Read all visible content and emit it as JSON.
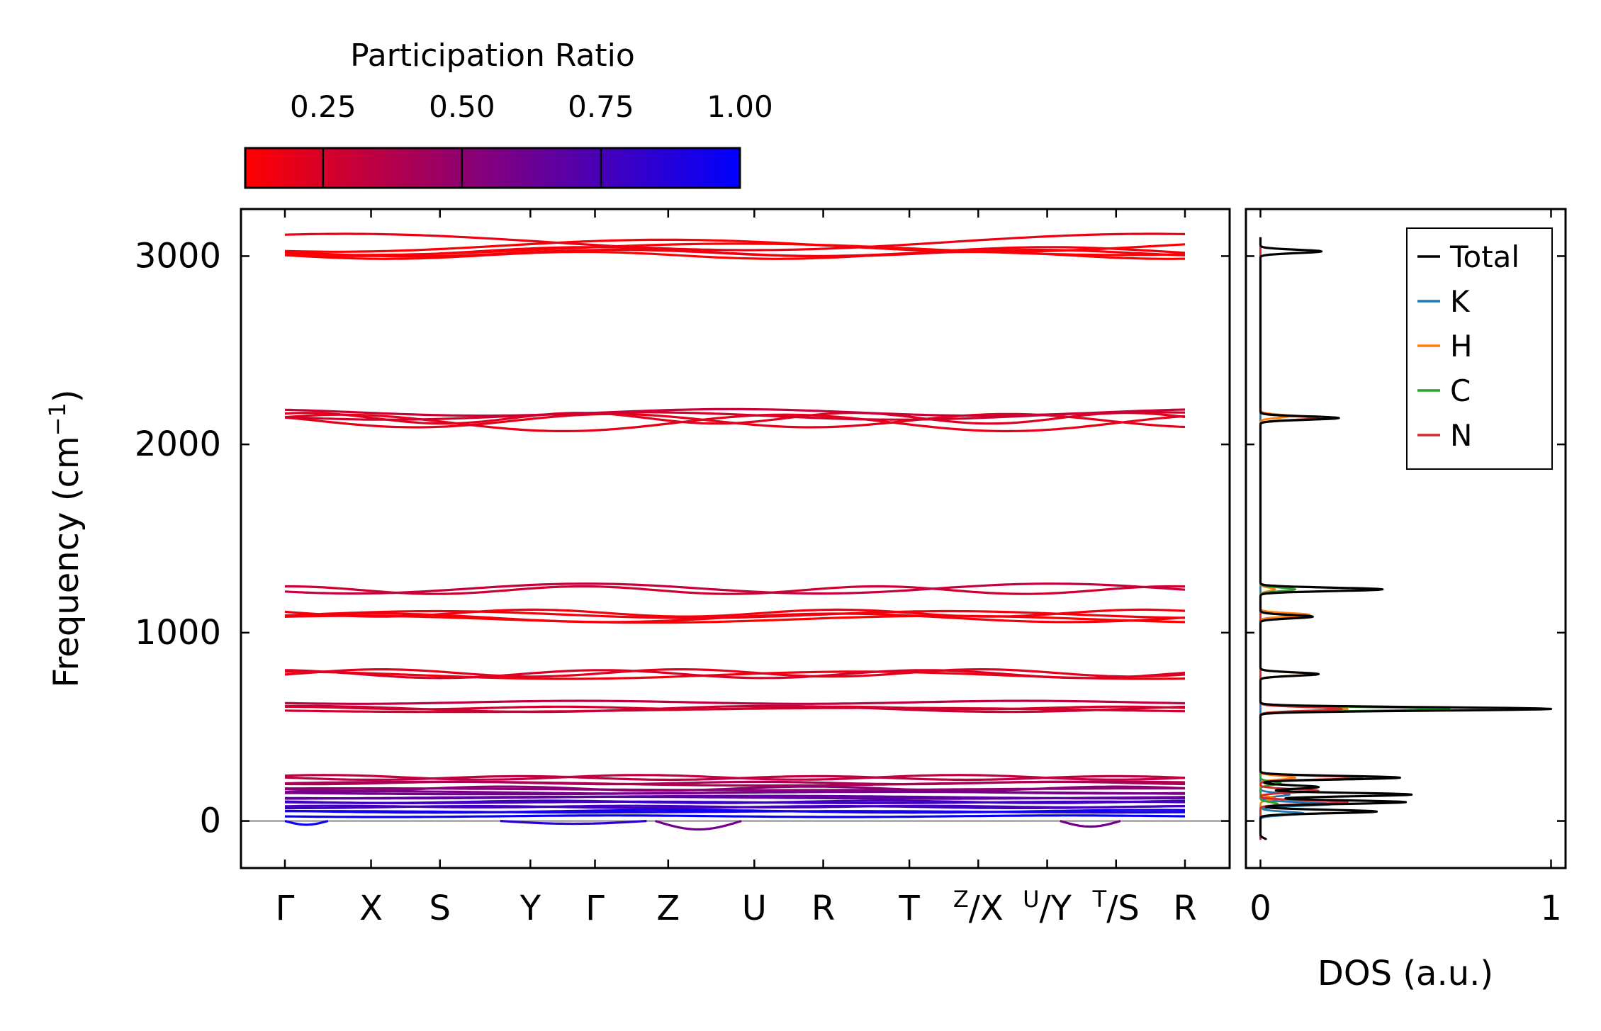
{
  "chart_data": [
    {
      "type": "line",
      "subtype": "phonon-band-structure",
      "ylabel": "Frequency (cm",
      "ylabel_sup": "−1",
      "ylabel_close": ")",
      "ylim": [
        -250,
        3250
      ],
      "yticks": [
        0,
        1000,
        2000,
        3000
      ],
      "ytick_labels": [
        "0",
        "1000",
        "2000",
        "3000"
      ],
      "kpoint_positions": [
        0,
        1,
        1.8,
        2.85,
        3.6,
        4.45,
        5.45,
        6.25,
        7.25,
        8.05,
        8.85,
        9.65,
        10.45
      ],
      "kpoints": [
        {
          "main": "Γ"
        },
        {
          "main": "X"
        },
        {
          "main": "S"
        },
        {
          "main": "Y"
        },
        {
          "main": "Γ"
        },
        {
          "main": "Z"
        },
        {
          "main": "U"
        },
        {
          "main": "R"
        },
        {
          "main": "T"
        },
        {
          "sup": "Z",
          "main": "/X"
        },
        {
          "sup": "U",
          "main": "/Y"
        },
        {
          "sup": "T",
          "main": "/S"
        },
        {
          "main": "R"
        }
      ],
      "colorbar": {
        "title": "Participation Ratio",
        "range": [
          0.11,
          1.0
        ],
        "ticks": [
          0.25,
          0.5,
          0.75,
          1.0
        ],
        "tick_labels": [
          "0.25",
          "0.50",
          "0.75",
          "1.00"
        ],
        "color_low": "#ff0000",
        "color_high": "#0000ff"
      },
      "band_groups": [
        {
          "freq": 3010,
          "pr": 0.12,
          "bands": 2
        },
        {
          "freq": 3030,
          "pr": 0.14,
          "bands": 2
        },
        {
          "freq": 3055,
          "pr": 0.13,
          "bands": 1
        },
        {
          "freq": 3075,
          "pr": 0.14,
          "bands": 1
        },
        {
          "freq": 2120,
          "pr": 0.22,
          "bands": 2
        },
        {
          "freq": 2145,
          "pr": 0.24,
          "bands": 2
        },
        {
          "freq": 2170,
          "pr": 0.27,
          "bands": 1
        },
        {
          "freq": 1230,
          "pr": 0.3,
          "bands": 2
        },
        {
          "freq": 1075,
          "pr": 0.14,
          "bands": 2
        },
        {
          "freq": 1100,
          "pr": 0.16,
          "bands": 2
        },
        {
          "freq": 780,
          "pr": 0.2,
          "bands": 3
        },
        {
          "freq": 595,
          "pr": 0.28,
          "bands": 3
        },
        {
          "freq": 630,
          "pr": 0.3,
          "bands": 1
        },
        {
          "freq": 230,
          "pr": 0.35,
          "bands": 2
        },
        {
          "freq": 200,
          "pr": 0.38,
          "bands": 2
        },
        {
          "freq": 170,
          "pr": 0.55,
          "bands": 2
        },
        {
          "freq": 150,
          "pr": 0.6,
          "bands": 2
        },
        {
          "freq": 125,
          "pr": 0.7,
          "bands": 2
        },
        {
          "freq": 100,
          "pr": 0.75,
          "bands": 2
        },
        {
          "freq": 75,
          "pr": 0.8,
          "bands": 2
        },
        {
          "freq": 50,
          "pr": 0.9,
          "bands": 2
        },
        {
          "freq": 25,
          "pr": 0.95,
          "bands": 1
        }
      ],
      "zero_line": 0
    },
    {
      "type": "line",
      "subtype": "density-of-states",
      "xlabel": "DOS (a.u.)",
      "xlim": [
        -0.05,
        1.05
      ],
      "xticks": [
        0,
        1
      ],
      "xtick_labels": [
        "0",
        "1"
      ],
      "legend": "top-right",
      "series": [
        {
          "name": "Total",
          "color": "#000000",
          "peaks": [
            [
              -100,
              0.02
            ],
            [
              50,
              0.4
            ],
            [
              100,
              0.5
            ],
            [
              140,
              0.52
            ],
            [
              180,
              0.2
            ],
            [
              230,
              0.48
            ],
            [
              595,
              1.0
            ],
            [
              780,
              0.2
            ],
            [
              1085,
              0.18
            ],
            [
              1230,
              0.42
            ],
            [
              2140,
              0.27
            ],
            [
              3025,
              0.21
            ]
          ]
        },
        {
          "name": "K",
          "color": "#1f77b4",
          "peaks": [
            [
              40,
              0.15
            ],
            [
              90,
              0.25
            ],
            [
              140,
              0.1
            ],
            [
              1090,
              0.16
            ]
          ]
        },
        {
          "name": "H",
          "color": "#ff7f0e",
          "peaks": [
            [
              120,
              0.05
            ],
            [
              230,
              0.12
            ],
            [
              595,
              0.3
            ],
            [
              780,
              0.18
            ],
            [
              1095,
              0.17
            ],
            [
              1230,
              0.05
            ],
            [
              2150,
              0.1
            ],
            [
              3025,
              0.2
            ]
          ]
        },
        {
          "name": "C",
          "color": "#2ca02c",
          "peaks": [
            [
              90,
              0.06
            ],
            [
              200,
              0.07
            ],
            [
              595,
              0.65
            ],
            [
              1230,
              0.12
            ],
            [
              2140,
              0.2
            ]
          ]
        },
        {
          "name": "N",
          "color": "#d62728",
          "peaks": [
            [
              100,
              0.3
            ],
            [
              160,
              0.2
            ],
            [
              230,
              0.35
            ],
            [
              595,
              0.28
            ],
            [
              1230,
              0.41
            ],
            [
              2140,
              0.2
            ]
          ]
        }
      ]
    }
  ]
}
